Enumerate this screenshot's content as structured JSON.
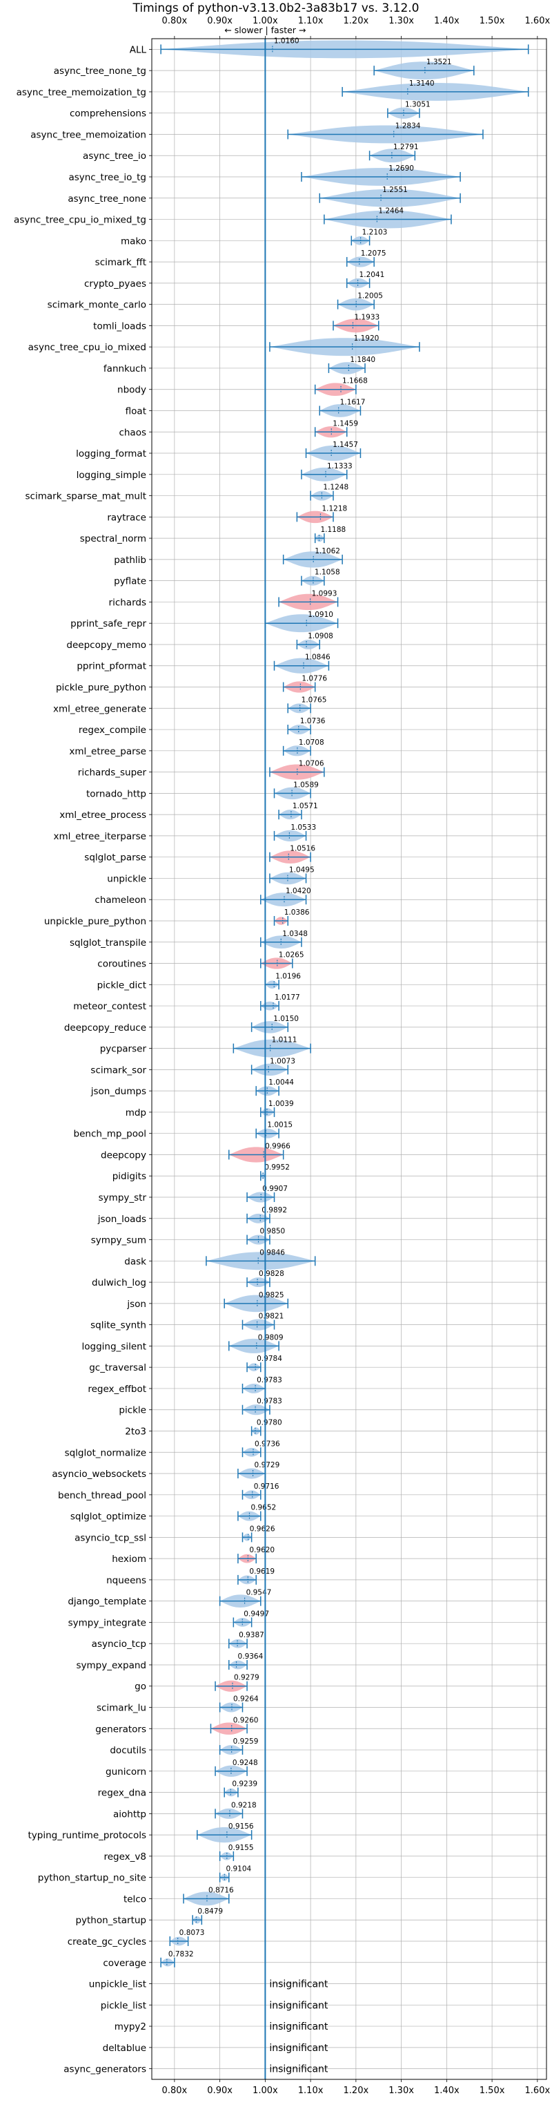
{
  "title": "Timings of python-v3.13.0b2-3a83b17 vs. 3.12.0",
  "direction_label": "← slower | faster →",
  "insignificant_label": "insignificant",
  "colors": {
    "violin": "#a9c9e7",
    "highlight": "#f4a3ab",
    "line": "#1f77b4",
    "grid": "#b0b0b0"
  },
  "chart_data": {
    "type": "violin",
    "title": "Timings of python-v3.13.0b2-3a83b17 vs. 3.12.0",
    "orientation": "horizontal",
    "xlim": [
      0.75,
      1.62
    ],
    "xticks": [
      0.8,
      0.9,
      1.0,
      1.1,
      1.2,
      1.3,
      1.4,
      1.5,
      1.6
    ],
    "xtick_labels": [
      "0.80x",
      "0.90x",
      "1.00x",
      "1.10x",
      "1.20x",
      "1.30x",
      "1.40x",
      "1.50x",
      "1.60x"
    ],
    "reference_line": 1.0,
    "grid": true,
    "benchmarks": [
      {
        "name": "ALL",
        "value": 1.016,
        "min": 0.77,
        "max": 1.58,
        "highlight": false
      },
      {
        "name": "async_tree_none_tg",
        "value": 1.3521,
        "min": 1.24,
        "max": 1.46,
        "highlight": false
      },
      {
        "name": "async_tree_memoization_tg",
        "value": 1.314,
        "min": 1.17,
        "max": 1.58,
        "highlight": false
      },
      {
        "name": "comprehensions",
        "value": 1.3051,
        "min": 1.27,
        "max": 1.34,
        "highlight": false
      },
      {
        "name": "async_tree_memoization",
        "value": 1.2834,
        "min": 1.05,
        "max": 1.48,
        "highlight": false
      },
      {
        "name": "async_tree_io",
        "value": 1.2791,
        "min": 1.23,
        "max": 1.33,
        "highlight": false
      },
      {
        "name": "async_tree_io_tg",
        "value": 1.269,
        "min": 1.08,
        "max": 1.43,
        "highlight": false
      },
      {
        "name": "async_tree_none",
        "value": 1.2551,
        "min": 1.12,
        "max": 1.43,
        "highlight": false
      },
      {
        "name": "async_tree_cpu_io_mixed_tg",
        "value": 1.2464,
        "min": 1.13,
        "max": 1.41,
        "highlight": false
      },
      {
        "name": "mako",
        "value": 1.2103,
        "min": 1.19,
        "max": 1.23,
        "highlight": false
      },
      {
        "name": "scimark_fft",
        "value": 1.2075,
        "min": 1.18,
        "max": 1.24,
        "highlight": false
      },
      {
        "name": "crypto_pyaes",
        "value": 1.2041,
        "min": 1.18,
        "max": 1.23,
        "highlight": false
      },
      {
        "name": "scimark_monte_carlo",
        "value": 1.2005,
        "min": 1.16,
        "max": 1.24,
        "highlight": false
      },
      {
        "name": "tomli_loads",
        "value": 1.1933,
        "min": 1.15,
        "max": 1.25,
        "highlight": true
      },
      {
        "name": "async_tree_cpu_io_mixed",
        "value": 1.192,
        "min": 1.01,
        "max": 1.34,
        "highlight": false
      },
      {
        "name": "fannkuch",
        "value": 1.184,
        "min": 1.14,
        "max": 1.22,
        "highlight": false
      },
      {
        "name": "nbody",
        "value": 1.1668,
        "min": 1.11,
        "max": 1.2,
        "highlight": true
      },
      {
        "name": "float",
        "value": 1.1617,
        "min": 1.12,
        "max": 1.21,
        "highlight": false
      },
      {
        "name": "chaos",
        "value": 1.1459,
        "min": 1.11,
        "max": 1.18,
        "highlight": true
      },
      {
        "name": "logging_format",
        "value": 1.1457,
        "min": 1.09,
        "max": 1.21,
        "highlight": false
      },
      {
        "name": "logging_simple",
        "value": 1.1333,
        "min": 1.08,
        "max": 1.18,
        "highlight": false
      },
      {
        "name": "scimark_sparse_mat_mult",
        "value": 1.1248,
        "min": 1.1,
        "max": 1.15,
        "highlight": false
      },
      {
        "name": "raytrace",
        "value": 1.1218,
        "min": 1.07,
        "max": 1.15,
        "highlight": true
      },
      {
        "name": "spectral_norm",
        "value": 1.1188,
        "min": 1.11,
        "max": 1.13,
        "highlight": false
      },
      {
        "name": "pathlib",
        "value": 1.1062,
        "min": 1.04,
        "max": 1.17,
        "highlight": false
      },
      {
        "name": "pyflate",
        "value": 1.1058,
        "min": 1.08,
        "max": 1.13,
        "highlight": false
      },
      {
        "name": "richards",
        "value": 1.0993,
        "min": 1.03,
        "max": 1.16,
        "highlight": true
      },
      {
        "name": "pprint_safe_repr",
        "value": 1.091,
        "min": 1.0,
        "max": 1.16,
        "highlight": false
      },
      {
        "name": "deepcopy_memo",
        "value": 1.0908,
        "min": 1.07,
        "max": 1.12,
        "highlight": false
      },
      {
        "name": "pprint_pformat",
        "value": 1.0846,
        "min": 1.02,
        "max": 1.14,
        "highlight": false
      },
      {
        "name": "pickle_pure_python",
        "value": 1.0776,
        "min": 1.04,
        "max": 1.11,
        "highlight": true
      },
      {
        "name": "xml_etree_generate",
        "value": 1.0765,
        "min": 1.05,
        "max": 1.1,
        "highlight": false
      },
      {
        "name": "regex_compile",
        "value": 1.0736,
        "min": 1.05,
        "max": 1.1,
        "highlight": false
      },
      {
        "name": "xml_etree_parse",
        "value": 1.0708,
        "min": 1.04,
        "max": 1.1,
        "highlight": false
      },
      {
        "name": "richards_super",
        "value": 1.0706,
        "min": 1.01,
        "max": 1.13,
        "highlight": true
      },
      {
        "name": "tornado_http",
        "value": 1.0589,
        "min": 1.02,
        "max": 1.1,
        "highlight": false
      },
      {
        "name": "xml_etree_process",
        "value": 1.0571,
        "min": 1.03,
        "max": 1.08,
        "highlight": false
      },
      {
        "name": "xml_etree_iterparse",
        "value": 1.0533,
        "min": 1.02,
        "max": 1.09,
        "highlight": false
      },
      {
        "name": "sqlglot_parse",
        "value": 1.0516,
        "min": 1.01,
        "max": 1.1,
        "highlight": true
      },
      {
        "name": "unpickle",
        "value": 1.0495,
        "min": 1.01,
        "max": 1.09,
        "highlight": false
      },
      {
        "name": "chameleon",
        "value": 1.042,
        "min": 0.99,
        "max": 1.09,
        "highlight": false
      },
      {
        "name": "unpickle_pure_python",
        "value": 1.0386,
        "min": 1.02,
        "max": 1.05,
        "highlight": true
      },
      {
        "name": "sqlglot_transpile",
        "value": 1.0348,
        "min": 0.99,
        "max": 1.08,
        "highlight": false
      },
      {
        "name": "coroutines",
        "value": 1.0265,
        "min": 0.99,
        "max": 1.06,
        "highlight": true
      },
      {
        "name": "pickle_dict",
        "value": 1.0196,
        "min": 1.0,
        "max": 1.03,
        "highlight": false
      },
      {
        "name": "meteor_contest",
        "value": 1.0177,
        "min": 0.99,
        "max": 1.03,
        "highlight": false
      },
      {
        "name": "deepcopy_reduce",
        "value": 1.015,
        "min": 0.97,
        "max": 1.05,
        "highlight": false
      },
      {
        "name": "pycparser",
        "value": 1.0111,
        "min": 0.93,
        "max": 1.1,
        "highlight": false
      },
      {
        "name": "scimark_sor",
        "value": 1.0073,
        "min": 0.97,
        "max": 1.05,
        "highlight": false
      },
      {
        "name": "json_dumps",
        "value": 1.0044,
        "min": 0.98,
        "max": 1.03,
        "highlight": false
      },
      {
        "name": "mdp",
        "value": 1.0039,
        "min": 0.99,
        "max": 1.02,
        "highlight": false
      },
      {
        "name": "bench_mp_pool",
        "value": 1.0015,
        "min": 0.98,
        "max": 1.03,
        "highlight": false
      },
      {
        "name": "deepcopy",
        "value": 0.9966,
        "min": 0.92,
        "max": 1.04,
        "highlight": true
      },
      {
        "name": "pidigits",
        "value": 0.9952,
        "min": 0.99,
        "max": 1.0,
        "highlight": false
      },
      {
        "name": "sympy_str",
        "value": 0.9907,
        "min": 0.96,
        "max": 1.02,
        "highlight": false
      },
      {
        "name": "json_loads",
        "value": 0.9892,
        "min": 0.96,
        "max": 1.01,
        "highlight": false
      },
      {
        "name": "sympy_sum",
        "value": 0.985,
        "min": 0.96,
        "max": 1.01,
        "highlight": false
      },
      {
        "name": "dask",
        "value": 0.9846,
        "min": 0.87,
        "max": 1.11,
        "highlight": false
      },
      {
        "name": "dulwich_log",
        "value": 0.9828,
        "min": 0.96,
        "max": 1.01,
        "highlight": false
      },
      {
        "name": "json",
        "value": 0.9825,
        "min": 0.91,
        "max": 1.05,
        "highlight": false
      },
      {
        "name": "sqlite_synth",
        "value": 0.9821,
        "min": 0.95,
        "max": 1.02,
        "highlight": false
      },
      {
        "name": "logging_silent",
        "value": 0.9809,
        "min": 0.92,
        "max": 1.03,
        "highlight": false
      },
      {
        "name": "gc_traversal",
        "value": 0.9784,
        "min": 0.96,
        "max": 0.99,
        "highlight": false
      },
      {
        "name": "regex_effbot",
        "value": 0.9783,
        "min": 0.95,
        "max": 1.0,
        "highlight": false
      },
      {
        "name": "pickle",
        "value": 0.9783,
        "min": 0.95,
        "max": 1.01,
        "highlight": false
      },
      {
        "name": "2to3",
        "value": 0.978,
        "min": 0.97,
        "max": 0.99,
        "highlight": false
      },
      {
        "name": "sqlglot_normalize",
        "value": 0.9736,
        "min": 0.95,
        "max": 0.99,
        "highlight": false
      },
      {
        "name": "asyncio_websockets",
        "value": 0.9729,
        "min": 0.94,
        "max": 1.0,
        "highlight": false
      },
      {
        "name": "bench_thread_pool",
        "value": 0.9716,
        "min": 0.95,
        "max": 0.99,
        "highlight": false
      },
      {
        "name": "sqlglot_optimize",
        "value": 0.9652,
        "min": 0.94,
        "max": 0.99,
        "highlight": false
      },
      {
        "name": "asyncio_tcp_ssl",
        "value": 0.9626,
        "min": 0.95,
        "max": 0.97,
        "highlight": false
      },
      {
        "name": "hexiom",
        "value": 0.962,
        "min": 0.94,
        "max": 0.98,
        "highlight": true
      },
      {
        "name": "nqueens",
        "value": 0.9619,
        "min": 0.94,
        "max": 0.98,
        "highlight": false
      },
      {
        "name": "django_template",
        "value": 0.9547,
        "min": 0.9,
        "max": 0.99,
        "highlight": false
      },
      {
        "name": "sympy_integrate",
        "value": 0.9497,
        "min": 0.93,
        "max": 0.97,
        "highlight": false
      },
      {
        "name": "asyncio_tcp",
        "value": 0.9387,
        "min": 0.92,
        "max": 0.96,
        "highlight": false
      },
      {
        "name": "sympy_expand",
        "value": 0.9364,
        "min": 0.92,
        "max": 0.96,
        "highlight": false
      },
      {
        "name": "go",
        "value": 0.9279,
        "min": 0.89,
        "max": 0.96,
        "highlight": true
      },
      {
        "name": "scimark_lu",
        "value": 0.9264,
        "min": 0.9,
        "max": 0.95,
        "highlight": false
      },
      {
        "name": "generators",
        "value": 0.926,
        "min": 0.88,
        "max": 0.96,
        "highlight": true
      },
      {
        "name": "docutils",
        "value": 0.9259,
        "min": 0.9,
        "max": 0.95,
        "highlight": false
      },
      {
        "name": "gunicorn",
        "value": 0.9248,
        "min": 0.89,
        "max": 0.96,
        "highlight": false
      },
      {
        "name": "regex_dna",
        "value": 0.9239,
        "min": 0.91,
        "max": 0.94,
        "highlight": false
      },
      {
        "name": "aiohttp",
        "value": 0.9218,
        "min": 0.89,
        "max": 0.95,
        "highlight": false
      },
      {
        "name": "typing_runtime_protocols",
        "value": 0.9156,
        "min": 0.85,
        "max": 0.97,
        "highlight": false
      },
      {
        "name": "regex_v8",
        "value": 0.9155,
        "min": 0.9,
        "max": 0.93,
        "highlight": false
      },
      {
        "name": "python_startup_no_site",
        "value": 0.9104,
        "min": 0.9,
        "max": 0.92,
        "highlight": false
      },
      {
        "name": "telco",
        "value": 0.8716,
        "min": 0.82,
        "max": 0.92,
        "highlight": false
      },
      {
        "name": "python_startup",
        "value": 0.8479,
        "min": 0.84,
        "max": 0.86,
        "highlight": false
      },
      {
        "name": "create_gc_cycles",
        "value": 0.8073,
        "min": 0.79,
        "max": 0.83,
        "highlight": false
      },
      {
        "name": "coverage",
        "value": 0.7832,
        "min": 0.77,
        "max": 0.8,
        "highlight": false
      },
      {
        "name": "unpickle_list",
        "value": null,
        "insignificant": true
      },
      {
        "name": "pickle_list",
        "value": null,
        "insignificant": true
      },
      {
        "name": "mypy2",
        "value": null,
        "insignificant": true
      },
      {
        "name": "deltablue",
        "value": null,
        "insignificant": true
      },
      {
        "name": "async_generators",
        "value": null,
        "insignificant": true
      }
    ]
  }
}
